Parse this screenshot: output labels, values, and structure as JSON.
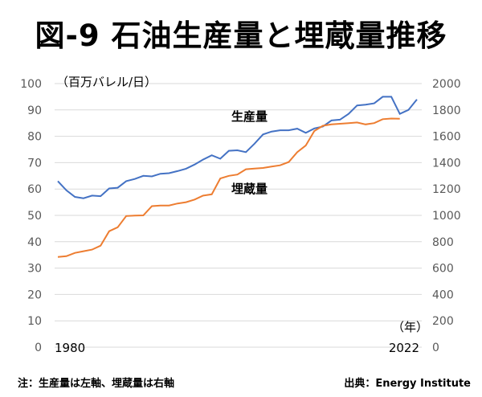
{
  "title": "図-9 石油生産量と埋蔵量推移",
  "chart_data": {
    "type": "line",
    "title": "図-9 石油生産量と埋蔵量推移",
    "unit_label": "（百万バレル/日）",
    "x_unit_label": "（年）",
    "x_start": 1980,
    "x_end": 2022,
    "x_tick_labels": [
      "1980",
      "2022"
    ],
    "left_axis": {
      "ylim": [
        0,
        100
      ],
      "ticks": [
        0,
        10,
        20,
        30,
        40,
        50,
        60,
        70,
        80,
        90,
        100
      ]
    },
    "right_axis": {
      "ylim": [
        0,
        2000
      ],
      "ticks": [
        0,
        200,
        400,
        600,
        800,
        1000,
        1200,
        1400,
        1600,
        1800,
        2000
      ]
    },
    "grid": true,
    "series": [
      {
        "name": "生産量",
        "axis": "left",
        "color": "#4472C4",
        "start_year": 1980,
        "values": [
          63,
          59.5,
          57,
          56.5,
          57.5,
          57.3,
          60.2,
          60.5,
          63,
          63.8,
          65,
          64.8,
          65.8,
          66,
          66.8,
          67.7,
          69.3,
          71.2,
          72.8,
          71.5,
          74.5,
          74.7,
          74,
          77.2,
          80.7,
          81.8,
          82.3,
          82.3,
          82.9,
          81.3,
          83,
          83.7,
          86,
          86.3,
          88.5,
          91.7,
          92,
          92.5,
          95,
          95,
          88.5,
          90,
          94
        ]
      },
      {
        "name": "埋蔵量",
        "axis": "right",
        "color": "#ED7D31",
        "start_year": 1980,
        "values": [
          684,
          690,
          715,
          728,
          740,
          770,
          880,
          910,
          995,
          998,
          1000,
          1070,
          1075,
          1075,
          1090,
          1100,
          1120,
          1150,
          1160,
          1280,
          1300,
          1310,
          1350,
          1355,
          1360,
          1370,
          1380,
          1405,
          1480,
          1530,
          1640,
          1680,
          1690,
          1695,
          1700,
          1705,
          1690,
          1700,
          1730,
          1735,
          1733
        ]
      }
    ]
  },
  "footer": {
    "note": "注：生産量は左軸、埋蔵量は右軸",
    "source": "出典：Energy Institute"
  }
}
